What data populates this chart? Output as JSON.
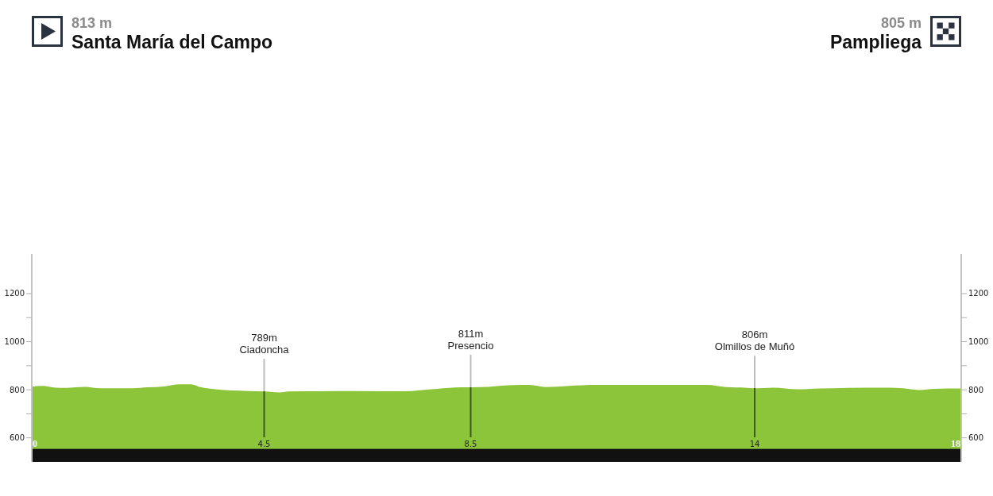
{
  "chart_data": {
    "type": "area",
    "title": "Santa María del Campo",
    "subtitle": "813 m",
    "annotations": [
      "805 m",
      "Pampliega"
    ],
    "x": [
      0,
      0.2,
      0.46,
      0.67,
      1.03,
      1.33,
      1.95,
      2.25,
      2.56,
      2.87,
      3.08,
      3.28,
      3.49,
      3.85,
      4.2,
      4.51,
      4.8,
      4.97,
      5.54,
      6.31,
      7.18,
      7.85,
      8.31,
      8.71,
      9.23,
      9.64,
      9.95,
      10.41,
      10.92,
      12.0,
      13.08,
      13.44,
      13.85,
      13.97,
      14.36,
      14.82,
      15.28,
      15.8,
      16.6,
      16.87,
      17.18,
      17.49,
      18
    ],
    "values": [
      813,
      816,
      809,
      808,
      812,
      806,
      806,
      810,
      814,
      823,
      823,
      810,
      804,
      797,
      795,
      793,
      789,
      793,
      794,
      795,
      794,
      804,
      810,
      811,
      819,
      820,
      811,
      816,
      820,
      820,
      820,
      811,
      808,
      806,
      809,
      802,
      805,
      808,
      809,
      806,
      799,
      804,
      805
    ],
    "color": "#8cc43a",
    "xlim": [
      0,
      18
    ],
    "xticks": [
      0,
      4.5,
      8.5,
      14,
      18
    ],
    "ylim": [
      500,
      1365
    ],
    "yticks": [
      600,
      {
        "value": 700,
        "label": null
      },
      800,
      {
        "value": 900,
        "label": null
      },
      1000,
      {
        "value": 1100,
        "label": null
      },
      1200
    ],
    "y2lim": [
      500,
      1365
    ],
    "y2ticks": [
      600,
      {
        "value": 700,
        "label": null
      },
      800,
      {
        "value": 900,
        "label": null
      },
      1000,
      {
        "value": 1100,
        "label": null
      },
      1200
    ],
    "ref_lines": [
      {
        "axis": "x",
        "value": 4.5,
        "label": "789m\nCiadoncha"
      },
      {
        "axis": "x",
        "value": 8.5,
        "label": "811m\nPresencio"
      },
      {
        "axis": "x",
        "value": 14,
        "label": "806m\nOlmillos de Muñó"
      }
    ],
    "bands": [
      {
        "axis": "y",
        "from": 500,
        "to": 554,
        "color": "#111111"
      }
    ]
  }
}
